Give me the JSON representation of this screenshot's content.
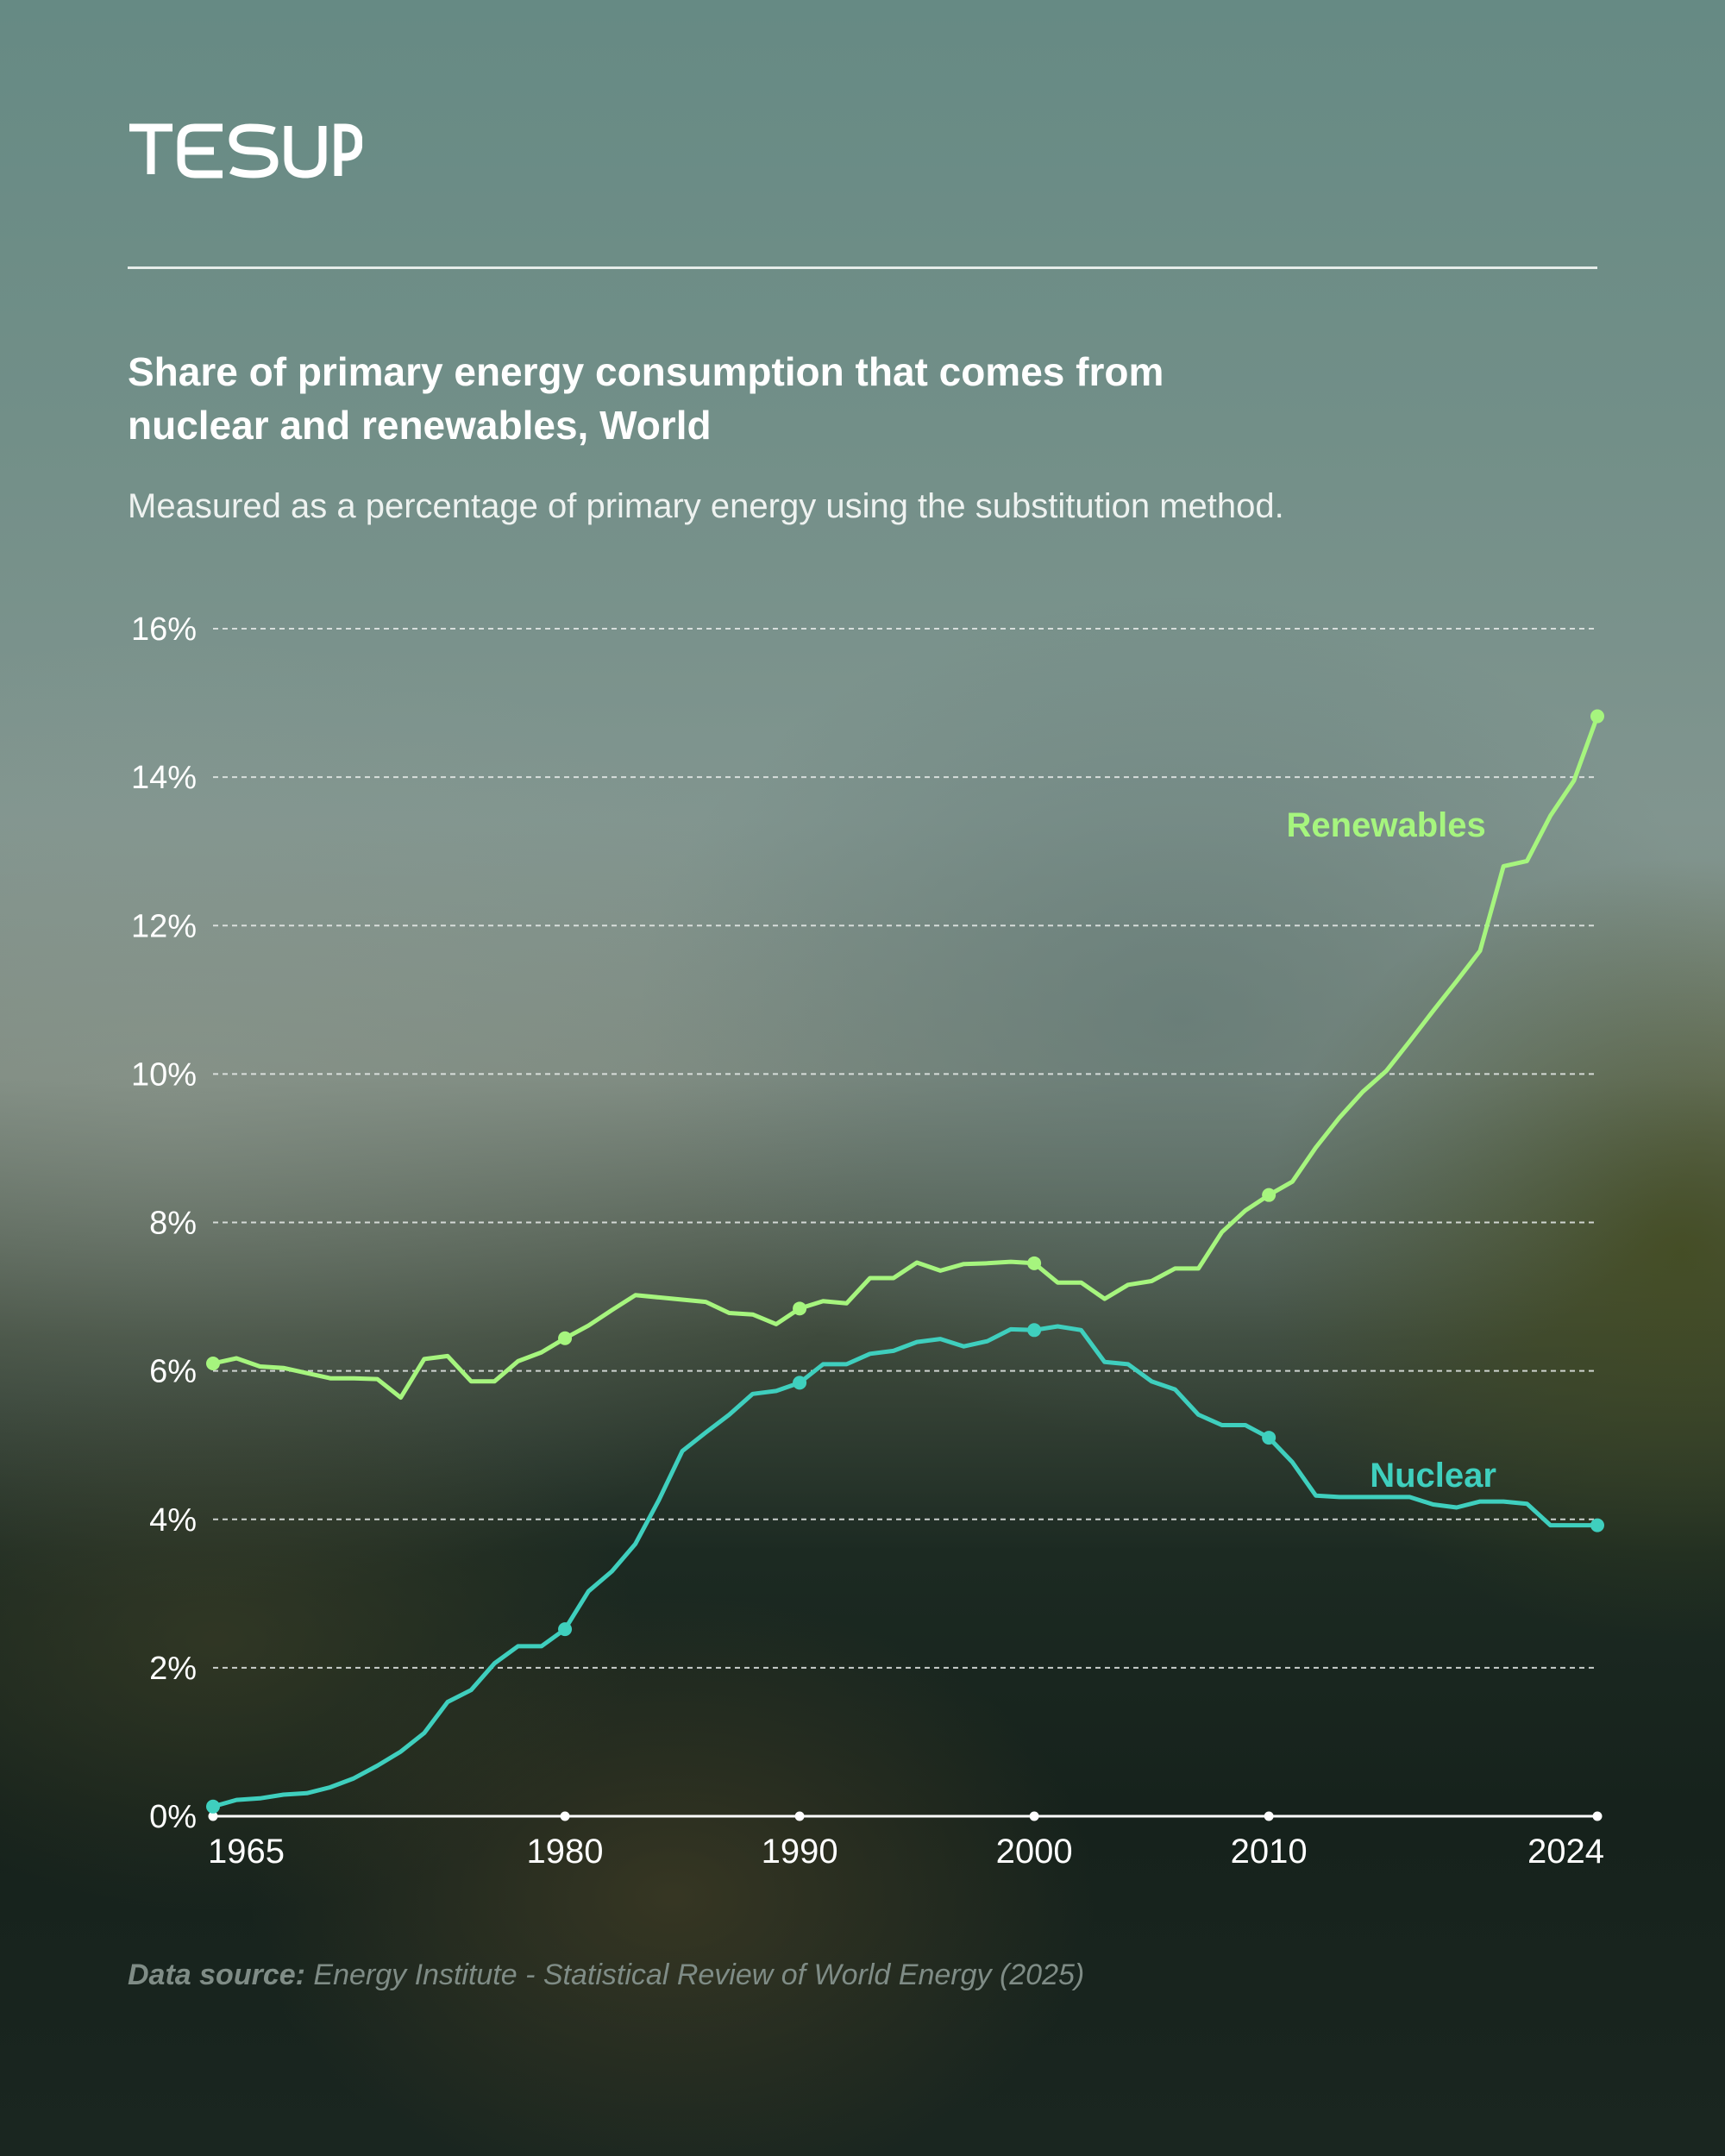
{
  "brand": {
    "name": "TESUP"
  },
  "header": {
    "title": "Share of primary energy consumption that comes from\nnuclear and renewables, World",
    "subtitle": "Measured as a percentage of primary energy using the substitution method."
  },
  "footer": {
    "source_label": "Data source:",
    "source_text": "Energy Institute - Statistical Review of World Energy (2025)"
  },
  "colors": {
    "renewables": "#a6f57e",
    "nuclear": "#3fcfbe",
    "grid": "#e8ecea",
    "text": "#ffffff"
  },
  "chart_data": {
    "type": "line",
    "title": "Share of primary energy consumption that comes from nuclear and renewables, World",
    "subtitle": "Measured as a percentage of primary energy using the substitution method.",
    "xlabel": "",
    "ylabel": "",
    "xlim": [
      1965,
      2024
    ],
    "ylim": [
      0,
      16
    ],
    "x_ticks": [
      1965,
      1980,
      1990,
      2000,
      2010,
      2024
    ],
    "y_ticks": [
      0,
      2,
      4,
      6,
      8,
      10,
      12,
      14,
      16
    ],
    "y_tick_labels": [
      "0%",
      "2%",
      "4%",
      "6%",
      "8%",
      "10%",
      "12%",
      "14%",
      "16%"
    ],
    "grid": true,
    "x": [
      1965,
      1966,
      1967,
      1968,
      1969,
      1970,
      1971,
      1972,
      1973,
      1974,
      1975,
      1976,
      1977,
      1978,
      1979,
      1980,
      1981,
      1982,
      1983,
      1984,
      1985,
      1986,
      1987,
      1988,
      1989,
      1990,
      1991,
      1992,
      1993,
      1994,
      1995,
      1996,
      1997,
      1998,
      1999,
      2000,
      2001,
      2002,
      2003,
      2004,
      2005,
      2006,
      2007,
      2008,
      2009,
      2010,
      2011,
      2012,
      2013,
      2014,
      2015,
      2016,
      2017,
      2018,
      2019,
      2020,
      2021,
      2022,
      2023,
      2024
    ],
    "series": [
      {
        "name": "Renewables",
        "color": "#a6f57e",
        "label_year": 2015,
        "label_value": 13.2,
        "values": [
          6.1,
          6.17,
          6.06,
          6.04,
          5.97,
          5.9,
          5.9,
          5.89,
          5.64,
          6.16,
          6.2,
          5.86,
          5.86,
          6.13,
          6.25,
          6.44,
          6.61,
          6.82,
          7.02,
          6.99,
          6.96,
          6.93,
          6.78,
          6.76,
          6.63,
          6.84,
          6.94,
          6.91,
          7.25,
          7.25,
          7.46,
          7.35,
          7.44,
          7.45,
          7.47,
          7.45,
          7.19,
          7.19,
          6.97,
          7.16,
          7.21,
          7.38,
          7.38,
          7.87,
          8.16,
          8.37,
          8.55,
          9.01,
          9.41,
          9.76,
          10.04,
          10.44,
          10.85,
          11.25,
          11.66,
          12.8,
          12.87,
          13.48,
          13.95,
          14.82
        ]
      },
      {
        "name": "Nuclear",
        "color": "#3fcfbe",
        "label_year": 2017,
        "label_value": 4.44,
        "values": [
          0.13,
          0.22,
          0.24,
          0.29,
          0.31,
          0.39,
          0.51,
          0.68,
          0.87,
          1.12,
          1.54,
          1.7,
          2.06,
          2.29,
          2.29,
          2.52,
          3.03,
          3.3,
          3.67,
          4.26,
          4.92,
          5.17,
          5.41,
          5.69,
          5.73,
          5.84,
          6.09,
          6.09,
          6.23,
          6.27,
          6.39,
          6.43,
          6.33,
          6.4,
          6.56,
          6.55,
          6.6,
          6.55,
          6.12,
          6.09,
          5.86,
          5.75,
          5.41,
          5.27,
          5.27,
          5.1,
          4.77,
          4.32,
          4.3,
          4.3,
          4.3,
          4.3,
          4.2,
          4.16,
          4.24,
          4.24,
          4.21,
          3.92,
          3.92,
          3.92
        ]
      }
    ]
  }
}
